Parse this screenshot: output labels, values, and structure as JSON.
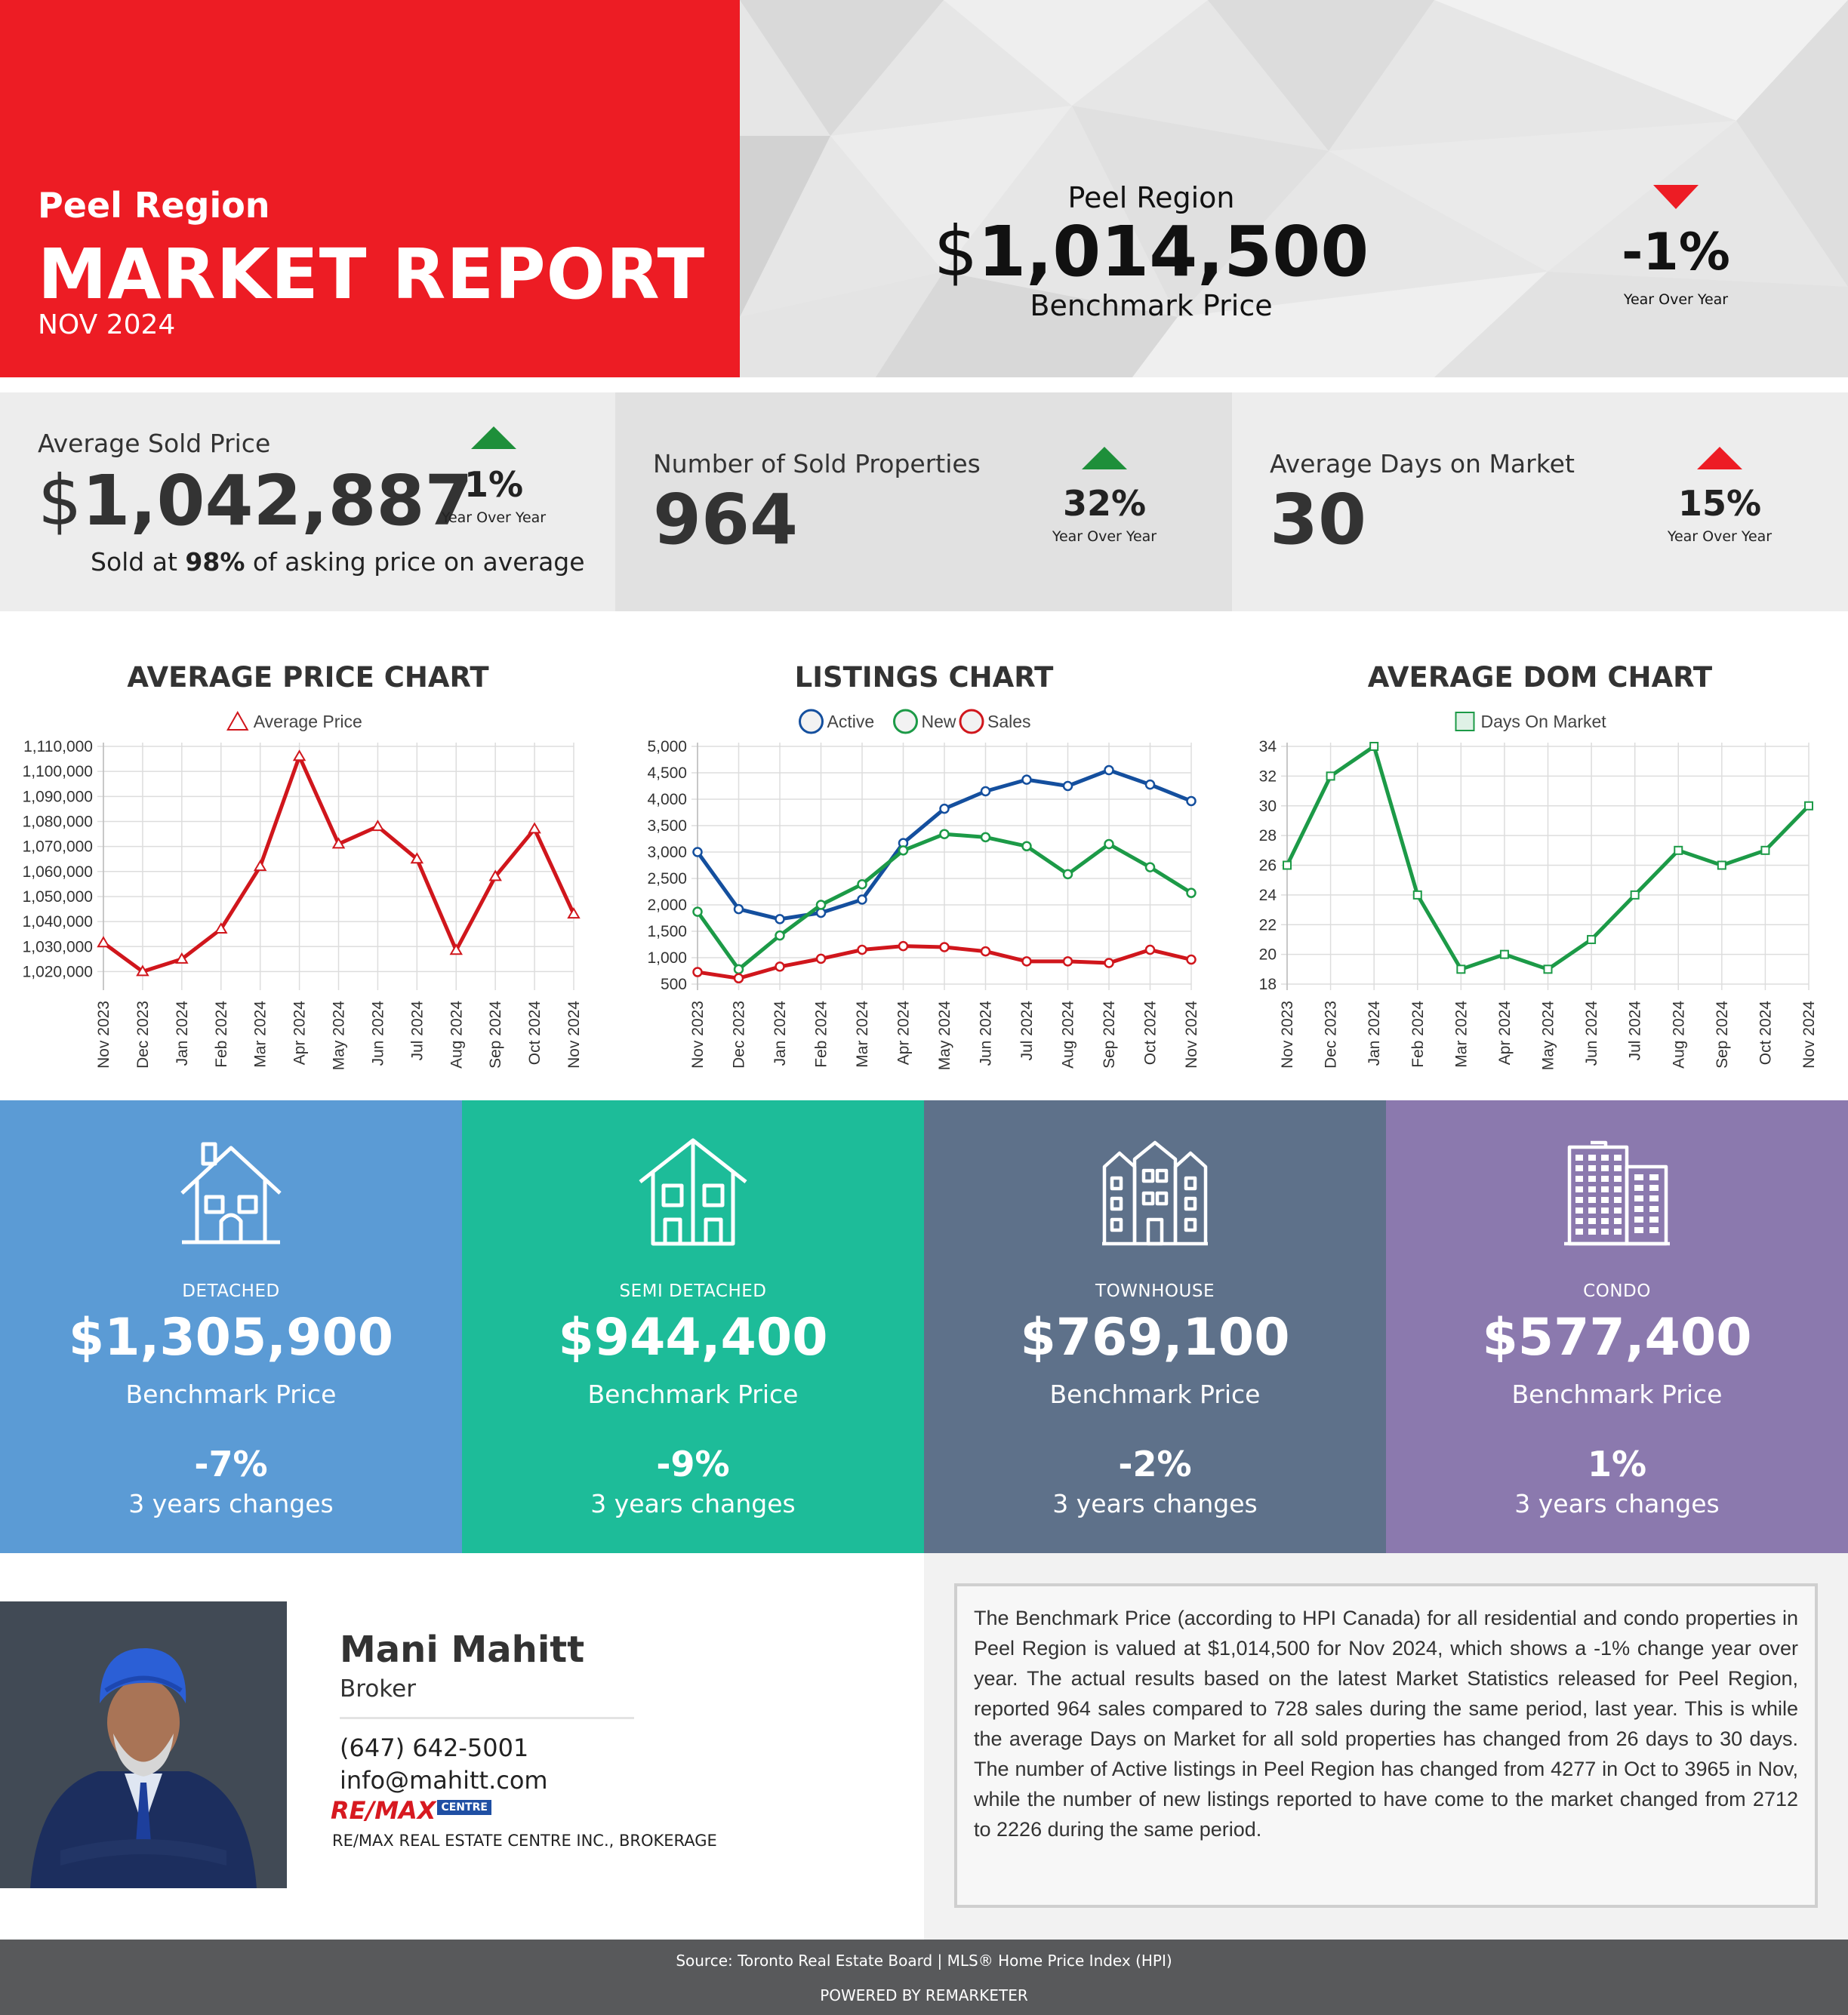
{
  "header": {
    "region": "Peel Region",
    "title": "MARKET REPORT",
    "date": "NOV 2024",
    "benchmark": {
      "region": "Peel Region",
      "currency": "$",
      "price": "1,014,500",
      "label": "Benchmark Price"
    },
    "yoy": {
      "value": "-1%",
      "label": "Year Over Year",
      "direction": "down"
    }
  },
  "stats": {
    "avg_sold": {
      "label": "Average Sold Price",
      "currency": "$",
      "value": "1,042,887",
      "yoy_value": "1%",
      "yoy_label": "Year Over Year",
      "direction": "up",
      "sub_prefix": "Sold at ",
      "sub_bold": "98%",
      "sub_suffix": " of asking price on average"
    },
    "sold_count": {
      "label": "Number of Sold Properties",
      "value": "964",
      "yoy_value": "32%",
      "yoy_label": "Year Over Year",
      "direction": "up"
    },
    "dom": {
      "label": "Average Days on Market",
      "value": "30",
      "yoy_value": "15%",
      "yoy_label": "Year Over Year",
      "direction": "up"
    }
  },
  "colors": {
    "red": "#ed1c24",
    "green_arrow": "#1e8f3a",
    "chart_red": "#d0161c",
    "chart_blue": "#144f9e",
    "chart_green": "#1c9a47",
    "detached": "#5b9bd5",
    "semi": "#1dbc99",
    "town": "#5e718a",
    "condo": "#8b79ae"
  },
  "chart_data": [
    {
      "type": "line",
      "title": "AVERAGE PRICE CHART",
      "x": [
        "Nov 2023",
        "Dec 2023",
        "Jan 2024",
        "Feb 2024",
        "Mar 2024",
        "Apr 2024",
        "May 2024",
        "Jun 2024",
        "Jul 2024",
        "Aug 2024",
        "Sep 2024",
        "Oct 2024",
        "Nov 2024"
      ],
      "series": [
        {
          "name": "Average Price",
          "marker": "triangle",
          "color": "#d0161c",
          "values": [
            1031500,
            1020000,
            1025000,
            1037000,
            1062000,
            1106000,
            1071000,
            1078000,
            1065000,
            1028500,
            1058000,
            1077000,
            1043000
          ]
        }
      ],
      "ylim": [
        1015000,
        1110000
      ],
      "yticks": [
        "1,110,000",
        "1,100,000",
        "1,090,000",
        "1,080,000",
        "1,070,000",
        "1,060,000",
        "1,050,000",
        "1,040,000",
        "1,030,000",
        "1,020,000"
      ],
      "ytick_values": [
        1110000,
        1100000,
        1090000,
        1080000,
        1070000,
        1060000,
        1050000,
        1040000,
        1030000,
        1020000
      ],
      "grid": true,
      "legend": "top-center"
    },
    {
      "type": "line",
      "title": "LISTINGS CHART",
      "x": [
        "Nov 2023",
        "Dec 2023",
        "Jan 2024",
        "Feb 2024",
        "Mar 2024",
        "Apr 2024",
        "May 2024",
        "Jun 2024",
        "Jul 2024",
        "Aug 2024",
        "Sep 2024",
        "Oct 2024",
        "Nov 2024"
      ],
      "series": [
        {
          "name": "Active",
          "marker": "circle",
          "color": "#144f9e",
          "values": [
            3000,
            1920,
            1730,
            1850,
            2100,
            3170,
            3820,
            4150,
            4370,
            4250,
            4550,
            4277,
            3965
          ]
        },
        {
          "name": "New",
          "marker": "circle",
          "color": "#1c9a47",
          "values": [
            1870,
            780,
            1420,
            2000,
            2390,
            3030,
            3340,
            3280,
            3110,
            2580,
            3150,
            2712,
            2226
          ]
        },
        {
          "name": "Sales",
          "marker": "circle",
          "color": "#d0161c",
          "values": [
            728,
            610,
            830,
            980,
            1150,
            1220,
            1200,
            1120,
            930,
            930,
            900,
            1150,
            964
          ]
        }
      ],
      "ylim": [
        500,
        5000
      ],
      "yticks": [
        "5,000",
        "4,500",
        "4,000",
        "3,500",
        "3,000",
        "2,500",
        "2,000",
        "1,500",
        "1,000",
        "500"
      ],
      "ytick_values": [
        5000,
        4500,
        4000,
        3500,
        3000,
        2500,
        2000,
        1500,
        1000,
        500
      ],
      "grid": true,
      "legend": "top-center"
    },
    {
      "type": "line",
      "title": "AVERAGE DOM CHART",
      "x": [
        "Nov 2023",
        "Dec 2023",
        "Jan 2024",
        "Feb 2024",
        "Mar 2024",
        "Apr 2024",
        "May 2024",
        "Jun 2024",
        "Jul 2024",
        "Aug 2024",
        "Sep 2024",
        "Oct 2024",
        "Nov 2024"
      ],
      "series": [
        {
          "name": "Days On Market",
          "marker": "square",
          "color": "#1c9a47",
          "values": [
            26,
            32,
            34,
            24,
            19,
            20,
            19,
            21,
            24,
            27,
            26,
            27,
            30
          ]
        }
      ],
      "ylim": [
        18,
        34
      ],
      "yticks": [
        "34",
        "32",
        "30",
        "28",
        "26",
        "24",
        "22",
        "20",
        "18"
      ],
      "ytick_values": [
        34,
        32,
        30,
        28,
        26,
        24,
        22,
        20,
        18
      ],
      "grid": true,
      "legend": "top-center"
    }
  ],
  "property_types": [
    {
      "name": "DETACHED",
      "price": "$1,305,900",
      "bench_label": "Benchmark Price",
      "change": "-7%",
      "change_label": "3 years changes",
      "icon": "house-icon"
    },
    {
      "name": "SEMI DETACHED",
      "price": "$944,400",
      "bench_label": "Benchmark Price",
      "change": "-9%",
      "change_label": "3 years changes",
      "icon": "semi-detached-icon"
    },
    {
      "name": "TOWNHOUSE",
      "price": "$769,100",
      "bench_label": "Benchmark Price",
      "change": "-2%",
      "change_label": "3 years changes",
      "icon": "townhouse-icon"
    },
    {
      "name": "CONDO",
      "price": "$577,400",
      "bench_label": "Benchmark Price",
      "change": "1%",
      "change_label": "3 years changes",
      "icon": "condo-icon"
    }
  ],
  "agent": {
    "name": "Mani Mahitt",
    "role": "Broker",
    "phone": "(647) 642-5001",
    "email": "info@mahitt.com",
    "logo_text": "RE/MAX",
    "logo_sub": "CENTRE",
    "brokerage": "RE/MAX REAL ESTATE CENTRE INC., BROKERAGE"
  },
  "description": "The Benchmark Price (according to HPI Canada) for all residential and condo properties in Peel Region is valued at $1,014,500 for Nov 2024, which shows a -1% change year over year. The actual results based on the latest Market Statistics released for Peel Region, reported 964 sales compared to 728 sales during the same period, last year. This is while the average Days on Market for all sold properties has changed from 26 days to 30 days. The number of Active listings in Peel Region has changed from 4277 in Oct to 3965 in Nov, while the number of new listings reported to have come to the market changed from 2712 to 2226 during the same period.",
  "footer": {
    "source": "Source: Toronto Real Estate Board | MLS® Home Price Index (HPI)",
    "powered": "POWERED BY REMARKETER"
  }
}
